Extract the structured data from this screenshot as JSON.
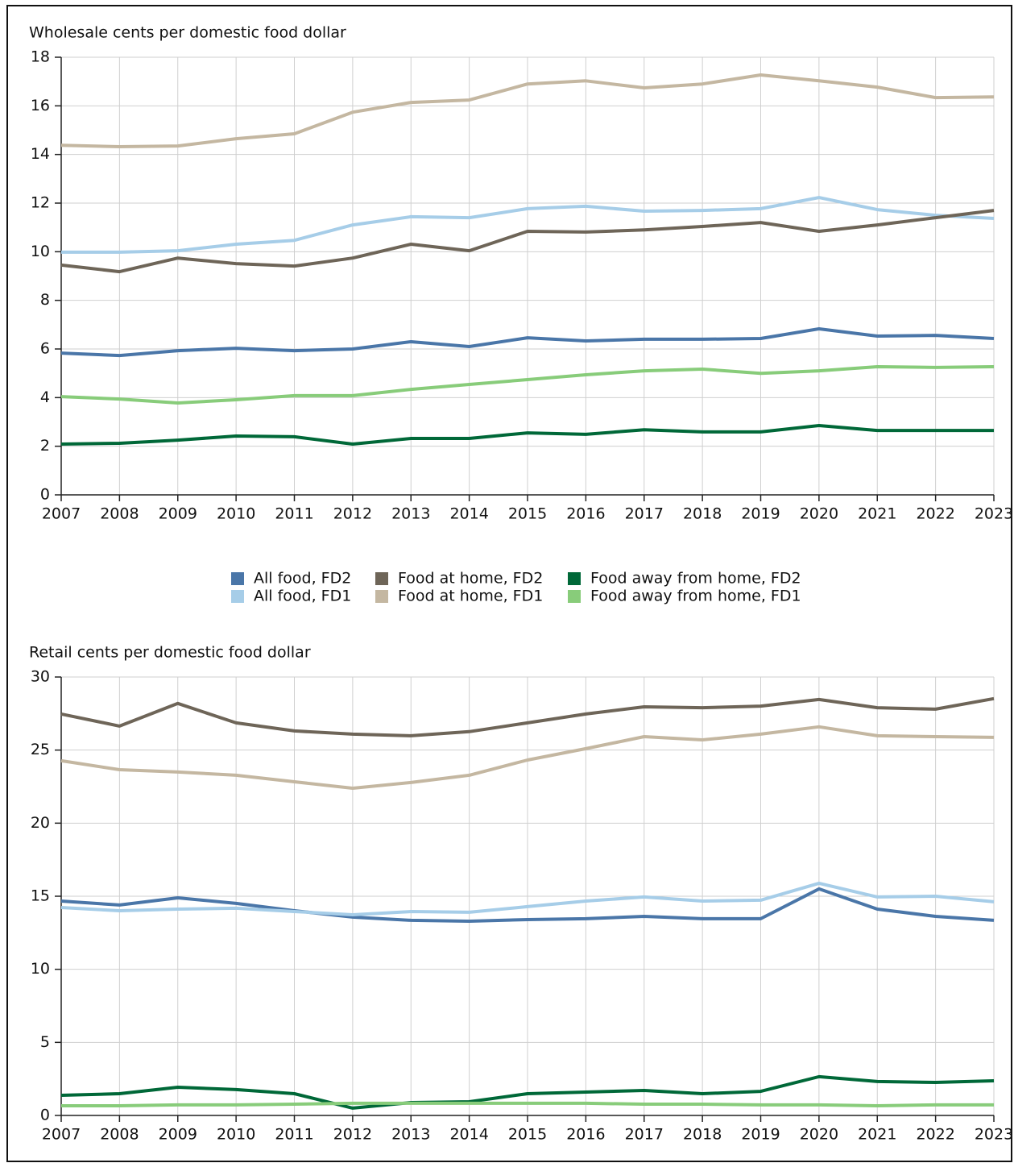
{
  "chart_data": [
    {
      "type": "line",
      "title": "Wholesale cents per domestic food dollar",
      "x": [
        2007,
        2008,
        2009,
        2010,
        2011,
        2012,
        2013,
        2014,
        2015,
        2016,
        2017,
        2018,
        2019,
        2020,
        2021,
        2022,
        2023
      ],
      "xlim": [
        2007,
        2023
      ],
      "xticks": [
        2007,
        2008,
        2009,
        2010,
        2011,
        2012,
        2013,
        2014,
        2015,
        2016,
        2017,
        2018,
        2019,
        2020,
        2021,
        2022,
        2023
      ],
      "ylim": [
        0,
        18
      ],
      "yticks": [
        0,
        2,
        4,
        6,
        8,
        10,
        12,
        14,
        16,
        18
      ],
      "grid": true,
      "series": [
        {
          "name": "All food, FD2",
          "color": "#4a76a8",
          "values": [
            5.83,
            5.73,
            5.93,
            6.03,
            5.93,
            6.0,
            6.3,
            6.1,
            6.46,
            6.33,
            6.4,
            6.4,
            6.43,
            6.83,
            6.53,
            6.56,
            6.43
          ]
        },
        {
          "name": "All food, FD1",
          "color": "#a6cde8",
          "values": [
            9.98,
            9.98,
            10.04,
            10.31,
            10.47,
            11.1,
            11.44,
            11.4,
            11.77,
            11.87,
            11.67,
            11.7,
            11.77,
            12.23,
            11.73,
            11.5,
            11.37
          ]
        },
        {
          "name": "Food at home, FD2",
          "color": "#6e6558",
          "values": [
            9.45,
            9.18,
            9.74,
            9.51,
            9.41,
            9.74,
            10.31,
            10.04,
            10.84,
            10.81,
            10.9,
            11.04,
            11.2,
            10.84,
            11.1,
            11.4,
            11.7
          ]
        },
        {
          "name": "Food at home, FD1",
          "color": "#c4b7a1",
          "values": [
            14.38,
            14.32,
            14.35,
            14.65,
            14.85,
            15.74,
            16.14,
            16.24,
            16.9,
            17.03,
            16.74,
            16.9,
            17.27,
            17.03,
            16.77,
            16.34,
            16.37
          ]
        },
        {
          "name": "Food away from home, FD2",
          "color": "#006838",
          "values": [
            2.09,
            2.12,
            2.25,
            2.42,
            2.39,
            2.09,
            2.32,
            2.32,
            2.55,
            2.49,
            2.68,
            2.59,
            2.59,
            2.85,
            2.65,
            2.65,
            2.65
          ]
        },
        {
          "name": "Food away from home, FD1",
          "color": "#88cc7a",
          "values": [
            4.04,
            3.94,
            3.78,
            3.91,
            4.08,
            4.08,
            4.34,
            4.54,
            4.74,
            4.94,
            5.1,
            5.17,
            5.0,
            5.1,
            5.27,
            5.24,
            5.27
          ]
        }
      ]
    },
    {
      "type": "line",
      "title": "Retail cents per domestic food dollar",
      "x": [
        2007,
        2008,
        2009,
        2010,
        2011,
        2012,
        2013,
        2014,
        2015,
        2016,
        2017,
        2018,
        2019,
        2020,
        2021,
        2022,
        2023
      ],
      "xlim": [
        2007,
        2023
      ],
      "xticks": [
        2007,
        2008,
        2009,
        2010,
        2011,
        2012,
        2013,
        2014,
        2015,
        2016,
        2017,
        2018,
        2019,
        2020,
        2021,
        2022,
        2023
      ],
      "ylim": [
        0,
        30
      ],
      "yticks": [
        0,
        5,
        10,
        15,
        20,
        25,
        30
      ],
      "grid": true,
      "series": [
        {
          "name": "All food, FD2",
          "color": "#4a76a8",
          "values": [
            14.67,
            14.4,
            14.89,
            14.51,
            14.01,
            13.57,
            13.35,
            13.29,
            13.4,
            13.46,
            13.62,
            13.46,
            13.46,
            15.5,
            14.12,
            13.62,
            13.35
          ]
        },
        {
          "name": "All food, FD1",
          "color": "#a6cde8",
          "values": [
            14.23,
            14.01,
            14.12,
            14.18,
            13.95,
            13.73,
            13.95,
            13.9,
            14.29,
            14.67,
            14.95,
            14.67,
            14.73,
            15.89,
            14.95,
            15.0,
            14.62
          ]
        },
        {
          "name": "Food at home, FD2",
          "color": "#6e6558",
          "values": [
            27.47,
            26.64,
            28.19,
            26.86,
            26.31,
            26.09,
            25.98,
            26.26,
            26.86,
            27.47,
            27.96,
            27.9,
            28.01,
            28.46,
            27.9,
            27.8,
            28.52
          ]
        },
        {
          "name": "Food at home, FD1",
          "color": "#c4b7a1",
          "values": [
            24.27,
            23.66,
            23.5,
            23.28,
            22.83,
            22.39,
            22.78,
            23.28,
            24.32,
            25.1,
            25.92,
            25.7,
            26.09,
            26.59,
            25.98,
            25.92,
            25.87
          ]
        },
        {
          "name": "Food away from home, FD2",
          "color": "#006838",
          "values": [
            1.38,
            1.49,
            1.93,
            1.77,
            1.49,
            0.5,
            0.88,
            0.94,
            1.49,
            1.6,
            1.71,
            1.49,
            1.65,
            2.65,
            2.32,
            2.26,
            2.37
          ]
        },
        {
          "name": "Food away from home, FD1",
          "color": "#88cc7a",
          "values": [
            0.66,
            0.66,
            0.72,
            0.72,
            0.77,
            0.83,
            0.83,
            0.83,
            0.83,
            0.83,
            0.77,
            0.77,
            0.72,
            0.72,
            0.66,
            0.72,
            0.72
          ]
        }
      ]
    }
  ]
}
